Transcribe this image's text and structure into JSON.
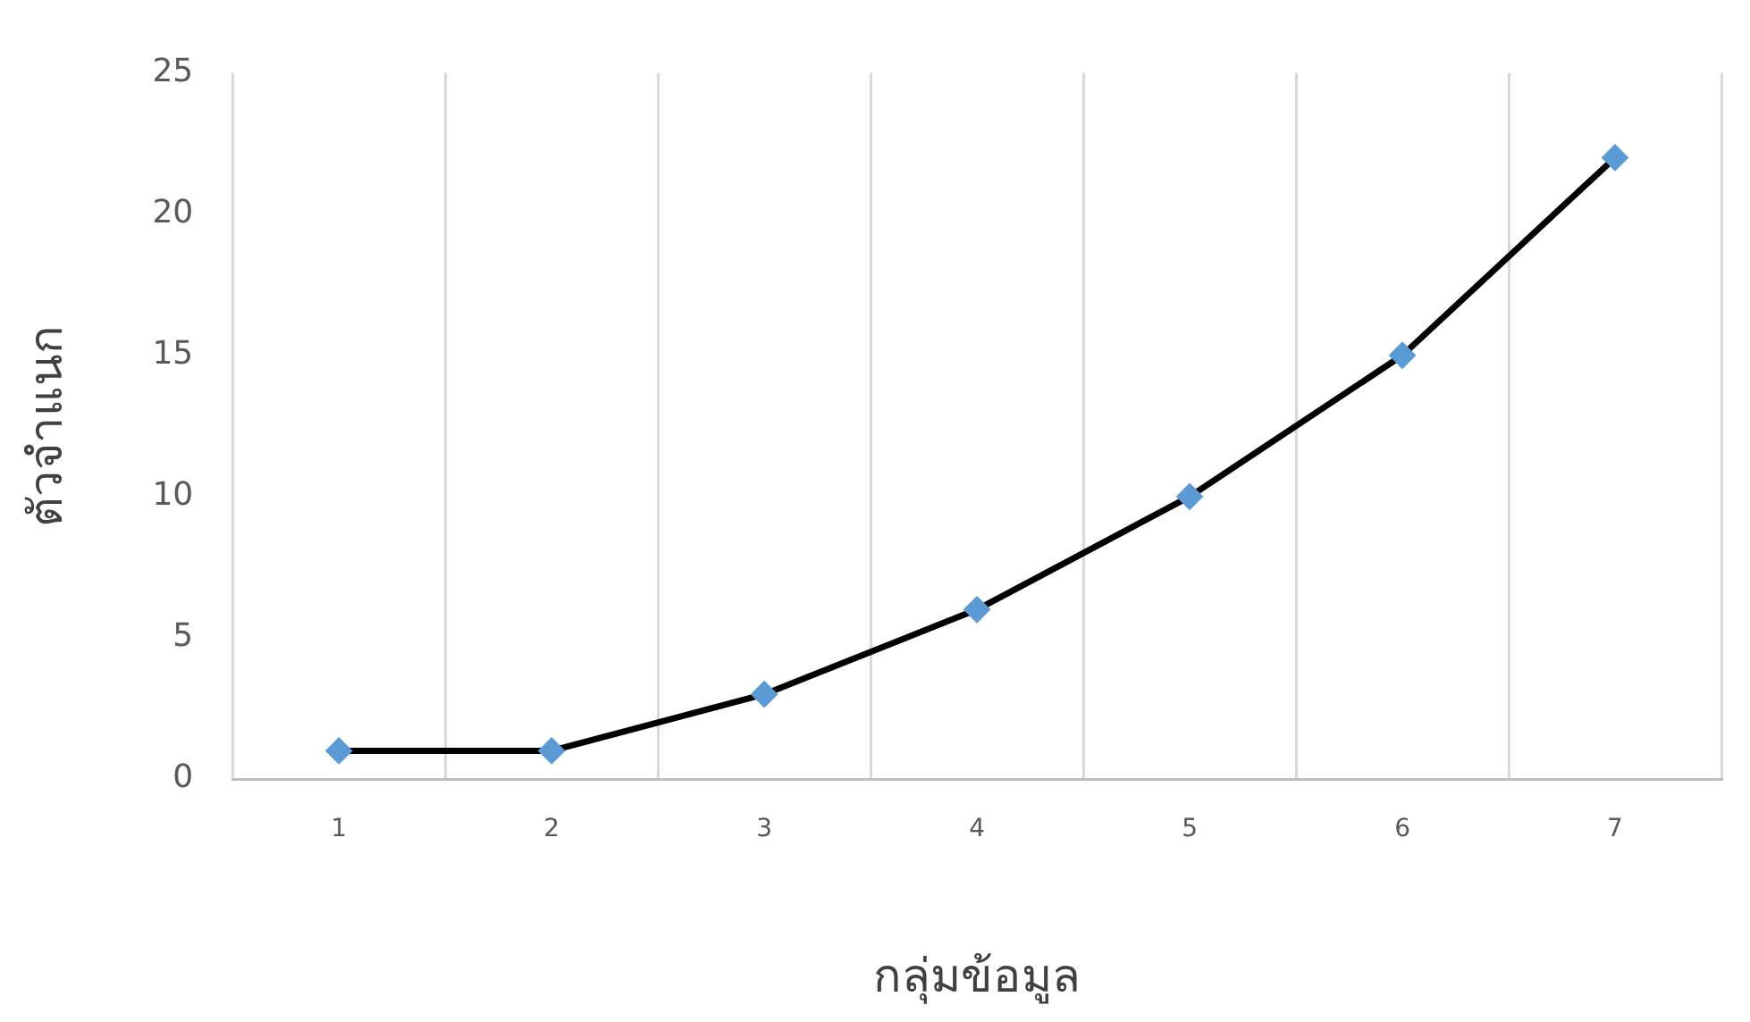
{
  "chart_data": {
    "type": "line",
    "xlabel": "กลุ่มข้อมูล",
    "ylabel": "ตัวจำแนก",
    "categories": [
      "1",
      "2",
      "3",
      "4",
      "5",
      "6",
      "7"
    ],
    "series": [
      {
        "color": "#5b9bd5",
        "values": [
          1,
          1,
          3,
          6,
          10,
          15,
          22
        ]
      }
    ],
    "ylim": [
      0,
      25
    ],
    "yticks": [
      0,
      5,
      10,
      15,
      20,
      25
    ],
    "grid": "x",
    "legend": false,
    "marker": "diamond",
    "line_style": "solid"
  }
}
